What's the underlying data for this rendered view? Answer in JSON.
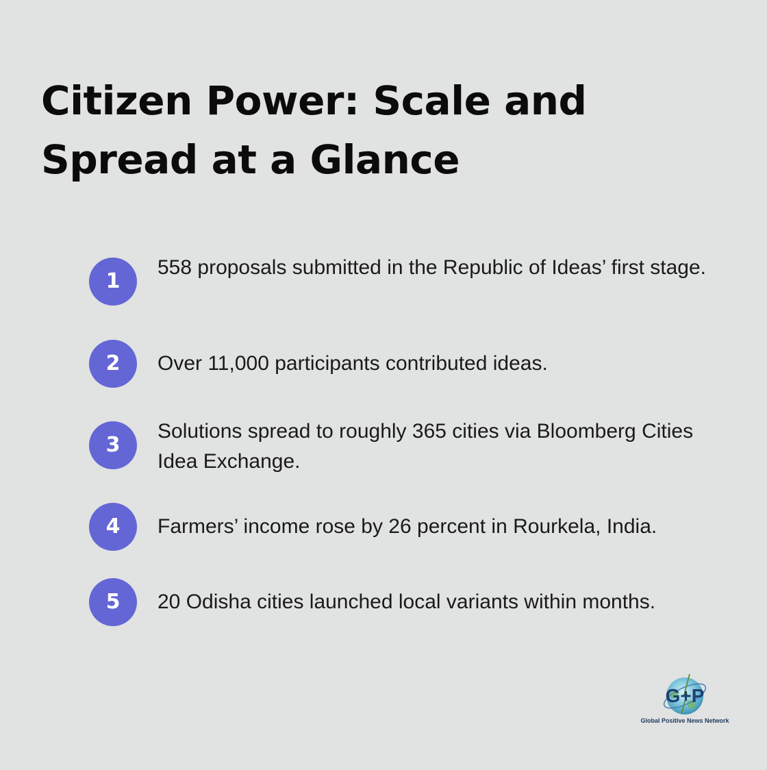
{
  "title": "Citizen Power: Scale and Spread at a Glance",
  "items": [
    {
      "number": "1",
      "text": "558 proposals submitted in the Republic of Ideas’ first stage."
    },
    {
      "number": "2",
      "text": "Over 11,000 participants contributed ideas."
    },
    {
      "number": "3",
      "text": "Solutions spread to roughly 365 cities via Bloomberg Cities Idea Exchange."
    },
    {
      "number": "4",
      "text": "Farmers’ income rose by 26 percent in Rourkela, India."
    },
    {
      "number": "5",
      "text": "20 Odisha cities launched local variants within months."
    }
  ],
  "logo": {
    "letters": "G+P",
    "caption": "Global Positive News Network"
  },
  "colors": {
    "background": "#e1e2e2",
    "badge": "#6366d4",
    "title": "#0b0b0b",
    "text": "#1a1a1a"
  }
}
